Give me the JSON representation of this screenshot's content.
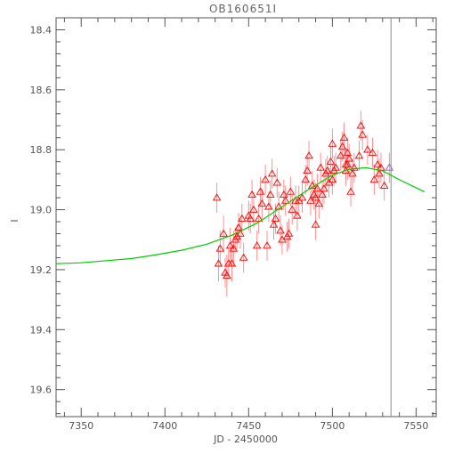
{
  "chart_data": {
    "type": "scatter",
    "title": "OB160651I",
    "xlabel": "JD - 2450000",
    "ylabel": "I",
    "xlim": [
      7335,
      7562
    ],
    "ylim": [
      19.69,
      18.36
    ],
    "y_inverted": true,
    "grid": false,
    "x_ticks": [
      "7350",
      "7400",
      "7450",
      "7500",
      "7550"
    ],
    "y_ticks": [
      "18.4",
      "18.6",
      "18.8",
      "19.0",
      "19.2",
      "19.4",
      "19.6"
    ],
    "vertical_line_x": 7535,
    "colors": {
      "points": "#ff0000",
      "errorbars": "#ff9090",
      "model": "#00cc00",
      "vline": "#888888",
      "last_point": "#9060c0",
      "axes": "#555555"
    },
    "series": [
      {
        "marker": "triangle",
        "x": [
          7431,
          7432,
          7433,
          7435,
          7436,
          7437,
          7438,
          7439,
          7440,
          7441,
          7442,
          7443,
          7444,
          7445,
          7446,
          7447,
          7450,
          7451,
          7452,
          7453,
          7455,
          7456,
          7457,
          7458,
          7460,
          7461,
          7462,
          7463,
          7464,
          7465,
          7466,
          7467,
          7468,
          7469,
          7470,
          7471,
          7472,
          7473,
          7474,
          7475,
          7476,
          7478,
          7479,
          7480,
          7482,
          7484,
          7485,
          7486,
          7487,
          7488,
          7489,
          7490,
          7490,
          7491,
          7492,
          7493,
          7494,
          7495,
          7496,
          7497,
          7498,
          7499,
          7500,
          7500,
          7501,
          7502,
          7505,
          7506,
          7507,
          7508,
          7508,
          7509,
          7509,
          7510,
          7511,
          7512,
          7513,
          7516,
          7517,
          7518,
          7521,
          7524,
          7525,
          7527,
          7528,
          7529,
          7531,
          7534
        ],
        "y": [
          18.96,
          19.18,
          19.13,
          19.08,
          19.21,
          19.22,
          19.18,
          19.12,
          19.18,
          19.13,
          19.1,
          19.09,
          19.06,
          19.08,
          19.03,
          19.16,
          19.02,
          19.03,
          18.95,
          19.0,
          19.12,
          19.03,
          18.94,
          18.98,
          18.9,
          19.12,
          18.99,
          18.95,
          18.88,
          19.05,
          19.03,
          18.91,
          18.99,
          19.07,
          19.1,
          18.95,
          18.97,
          19.09,
          19.08,
          18.94,
          19.0,
          18.97,
          19.02,
          18.97,
          18.96,
          18.9,
          18.87,
          18.82,
          18.97,
          18.92,
          18.95,
          18.96,
          19.05,
          18.93,
          18.98,
          18.86,
          18.95,
          18.93,
          18.88,
          18.87,
          18.91,
          18.84,
          18.78,
          18.9,
          18.87,
          18.86,
          18.82,
          18.79,
          18.76,
          18.85,
          18.87,
          18.81,
          18.85,
          18.83,
          18.94,
          18.88,
          18.86,
          18.82,
          18.72,
          18.75,
          18.8,
          18.81,
          18.9,
          18.85,
          18.88,
          18.86,
          18.92,
          18.86
        ],
        "err": [
          0.05,
          0.06,
          0.06,
          0.06,
          0.05,
          0.07,
          0.05,
          0.06,
          0.06,
          0.06,
          0.04,
          0.04,
          0.05,
          0.05,
          0.05,
          0.05,
          0.05,
          0.05,
          0.05,
          0.06,
          0.05,
          0.05,
          0.05,
          0.05,
          0.05,
          0.05,
          0.05,
          0.05,
          0.05,
          0.05,
          0.05,
          0.05,
          0.05,
          0.05,
          0.05,
          0.05,
          0.05,
          0.05,
          0.05,
          0.05,
          0.05,
          0.05,
          0.05,
          0.05,
          0.05,
          0.05,
          0.05,
          0.05,
          0.05,
          0.05,
          0.05,
          0.05,
          0.05,
          0.05,
          0.05,
          0.05,
          0.05,
          0.05,
          0.05,
          0.05,
          0.05,
          0.05,
          0.05,
          0.05,
          0.05,
          0.05,
          0.05,
          0.05,
          0.05,
          0.05,
          0.05,
          0.05,
          0.05,
          0.05,
          0.05,
          0.05,
          0.05,
          0.05,
          0.05,
          0.05,
          0.05,
          0.05,
          0.05,
          0.05,
          0.05,
          0.05,
          0.05,
          0.05
        ]
      },
      {
        "type": "line",
        "x": [
          7335,
          7350,
          7365,
          7380,
          7395,
          7410,
          7425,
          7440,
          7455,
          7470,
          7485,
          7500,
          7510,
          7520,
          7530,
          7540,
          7555
        ],
        "y": [
          19.18,
          19.177,
          19.17,
          19.163,
          19.15,
          19.135,
          19.115,
          19.085,
          19.045,
          18.99,
          18.935,
          18.885,
          18.865,
          18.86,
          18.87,
          18.9,
          18.94
        ]
      }
    ]
  }
}
